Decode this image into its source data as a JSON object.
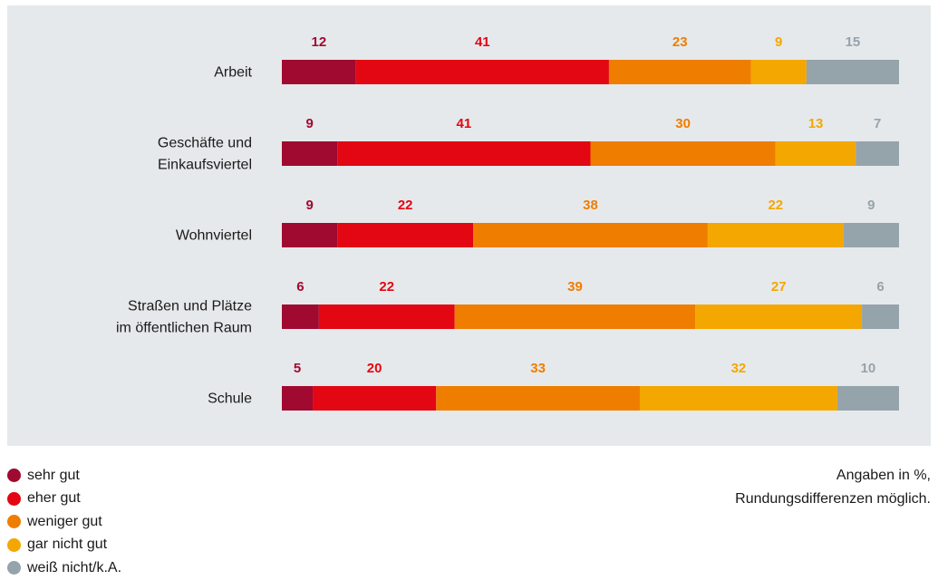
{
  "chart_data": {
    "type": "bar",
    "orientation": "horizontal",
    "stacked": true,
    "categories": [
      [
        "Arbeit"
      ],
      [
        "Geschäfte und",
        "Einkaufsviertel"
      ],
      [
        "Wohnviertel"
      ],
      [
        "Straßen und Plätze",
        "im öffentlichen Raum"
      ],
      [
        "Schule"
      ]
    ],
    "series": [
      {
        "name": "sehr gut",
        "color": "#a00a30",
        "values": [
          12,
          9,
          9,
          6,
          5
        ]
      },
      {
        "name": "eher gut",
        "color": "#e30613",
        "values": [
          41,
          41,
          22,
          22,
          20
        ]
      },
      {
        "name": "weniger gut",
        "color": "#ef7d00",
        "values": [
          23,
          30,
          38,
          39,
          33
        ]
      },
      {
        "name": "gar nicht gut",
        "color": "#f4a700",
        "values": [
          9,
          13,
          22,
          27,
          32
        ]
      },
      {
        "name": "weiß nicht/k.A.",
        "color": "#95a3ab",
        "values": [
          15,
          7,
          9,
          6,
          10
        ]
      }
    ],
    "xlim": [
      0,
      100
    ],
    "legend_position": "bottom-left",
    "grid": false
  },
  "note": {
    "line1": "Angaben in %,",
    "line2": "Rundungsdifferenzen möglich."
  }
}
